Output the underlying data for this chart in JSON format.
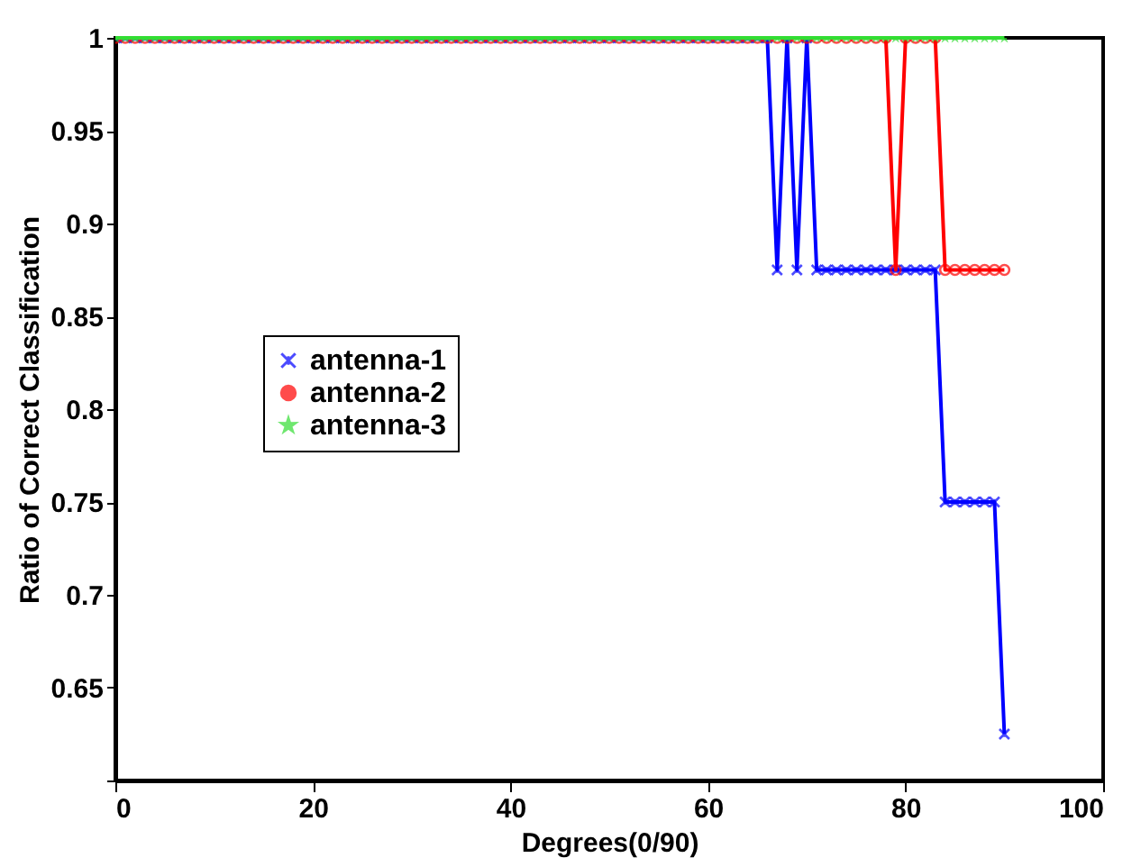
{
  "chart_data": {
    "type": "line",
    "xlabel": "Degrees(0/90)",
    "ylabel": "Ratio of Correct Classification",
    "x": [
      0,
      1,
      2,
      3,
      4,
      5,
      6,
      7,
      8,
      9,
      10,
      11,
      12,
      13,
      14,
      15,
      16,
      17,
      18,
      19,
      20,
      21,
      22,
      23,
      24,
      25,
      26,
      27,
      28,
      29,
      30,
      31,
      32,
      33,
      34,
      35,
      36,
      37,
      38,
      39,
      40,
      41,
      42,
      43,
      44,
      45,
      46,
      47,
      48,
      49,
      50,
      51,
      52,
      53,
      54,
      55,
      56,
      57,
      58,
      59,
      60,
      61,
      62,
      63,
      64,
      65,
      66,
      67,
      68,
      69,
      70,
      71,
      72,
      73,
      74,
      75,
      76,
      77,
      78,
      79,
      80,
      81,
      82,
      83,
      84,
      85,
      86,
      87,
      88,
      89,
      90
    ],
    "series": [
      {
        "name": "antenna-1",
        "color": "#0000ff",
        "marker": "cross",
        "values": [
          1,
          1,
          1,
          1,
          1,
          1,
          1,
          1,
          1,
          1,
          1,
          1,
          1,
          1,
          1,
          1,
          1,
          1,
          1,
          1,
          1,
          1,
          1,
          1,
          1,
          1,
          1,
          1,
          1,
          1,
          1,
          1,
          1,
          1,
          1,
          1,
          1,
          1,
          1,
          1,
          1,
          1,
          1,
          1,
          1,
          1,
          1,
          1,
          1,
          1,
          1,
          1,
          1,
          1,
          1,
          1,
          1,
          1,
          1,
          1,
          1,
          1,
          1,
          1,
          1,
          1,
          1,
          0.875,
          1,
          0.875,
          1,
          0.875,
          0.875,
          0.875,
          0.875,
          0.875,
          0.875,
          0.875,
          0.875,
          0.875,
          0.875,
          0.875,
          0.875,
          0.875,
          0.75,
          0.75,
          0.75,
          0.75,
          0.75,
          0.75,
          0.625
        ]
      },
      {
        "name": "antenna-2",
        "color": "#ff0000",
        "marker": "circle",
        "values": [
          1,
          1,
          1,
          1,
          1,
          1,
          1,
          1,
          1,
          1,
          1,
          1,
          1,
          1,
          1,
          1,
          1,
          1,
          1,
          1,
          1,
          1,
          1,
          1,
          1,
          1,
          1,
          1,
          1,
          1,
          1,
          1,
          1,
          1,
          1,
          1,
          1,
          1,
          1,
          1,
          1,
          1,
          1,
          1,
          1,
          1,
          1,
          1,
          1,
          1,
          1,
          1,
          1,
          1,
          1,
          1,
          1,
          1,
          1,
          1,
          1,
          1,
          1,
          1,
          1,
          1,
          1,
          1,
          1,
          1,
          1,
          1,
          1,
          1,
          1,
          1,
          1,
          1,
          1,
          0.875,
          1,
          1,
          1,
          1,
          0.875,
          0.875,
          0.875,
          0.875,
          0.875,
          0.875,
          0.875
        ]
      },
      {
        "name": "antenna-3",
        "color": "#33dd33",
        "marker": "star",
        "values": [
          1,
          1,
          1,
          1,
          1,
          1,
          1,
          1,
          1,
          1,
          1,
          1,
          1,
          1,
          1,
          1,
          1,
          1,
          1,
          1,
          1,
          1,
          1,
          1,
          1,
          1,
          1,
          1,
          1,
          1,
          1,
          1,
          1,
          1,
          1,
          1,
          1,
          1,
          1,
          1,
          1,
          1,
          1,
          1,
          1,
          1,
          1,
          1,
          1,
          1,
          1,
          1,
          1,
          1,
          1,
          1,
          1,
          1,
          1,
          1,
          1,
          1,
          1,
          1,
          1,
          1,
          1,
          1,
          1,
          1,
          1,
          1,
          1,
          1,
          1,
          1,
          1,
          1,
          1,
          1,
          1,
          1,
          1,
          1,
          1,
          1,
          1,
          1,
          1,
          1,
          1
        ]
      }
    ],
    "xlim": [
      0,
      100
    ],
    "xticks": [
      0,
      20,
      40,
      60,
      80,
      100
    ],
    "ylim": [
      0.6,
      1
    ],
    "yticks": [
      {
        "value": 0.6,
        "label": null
      },
      0.65,
      0.7,
      0.75,
      0.8,
      0.85,
      0.9,
      0.95,
      1
    ],
    "grid": false,
    "legend": "left",
    "line_style": "solid"
  }
}
